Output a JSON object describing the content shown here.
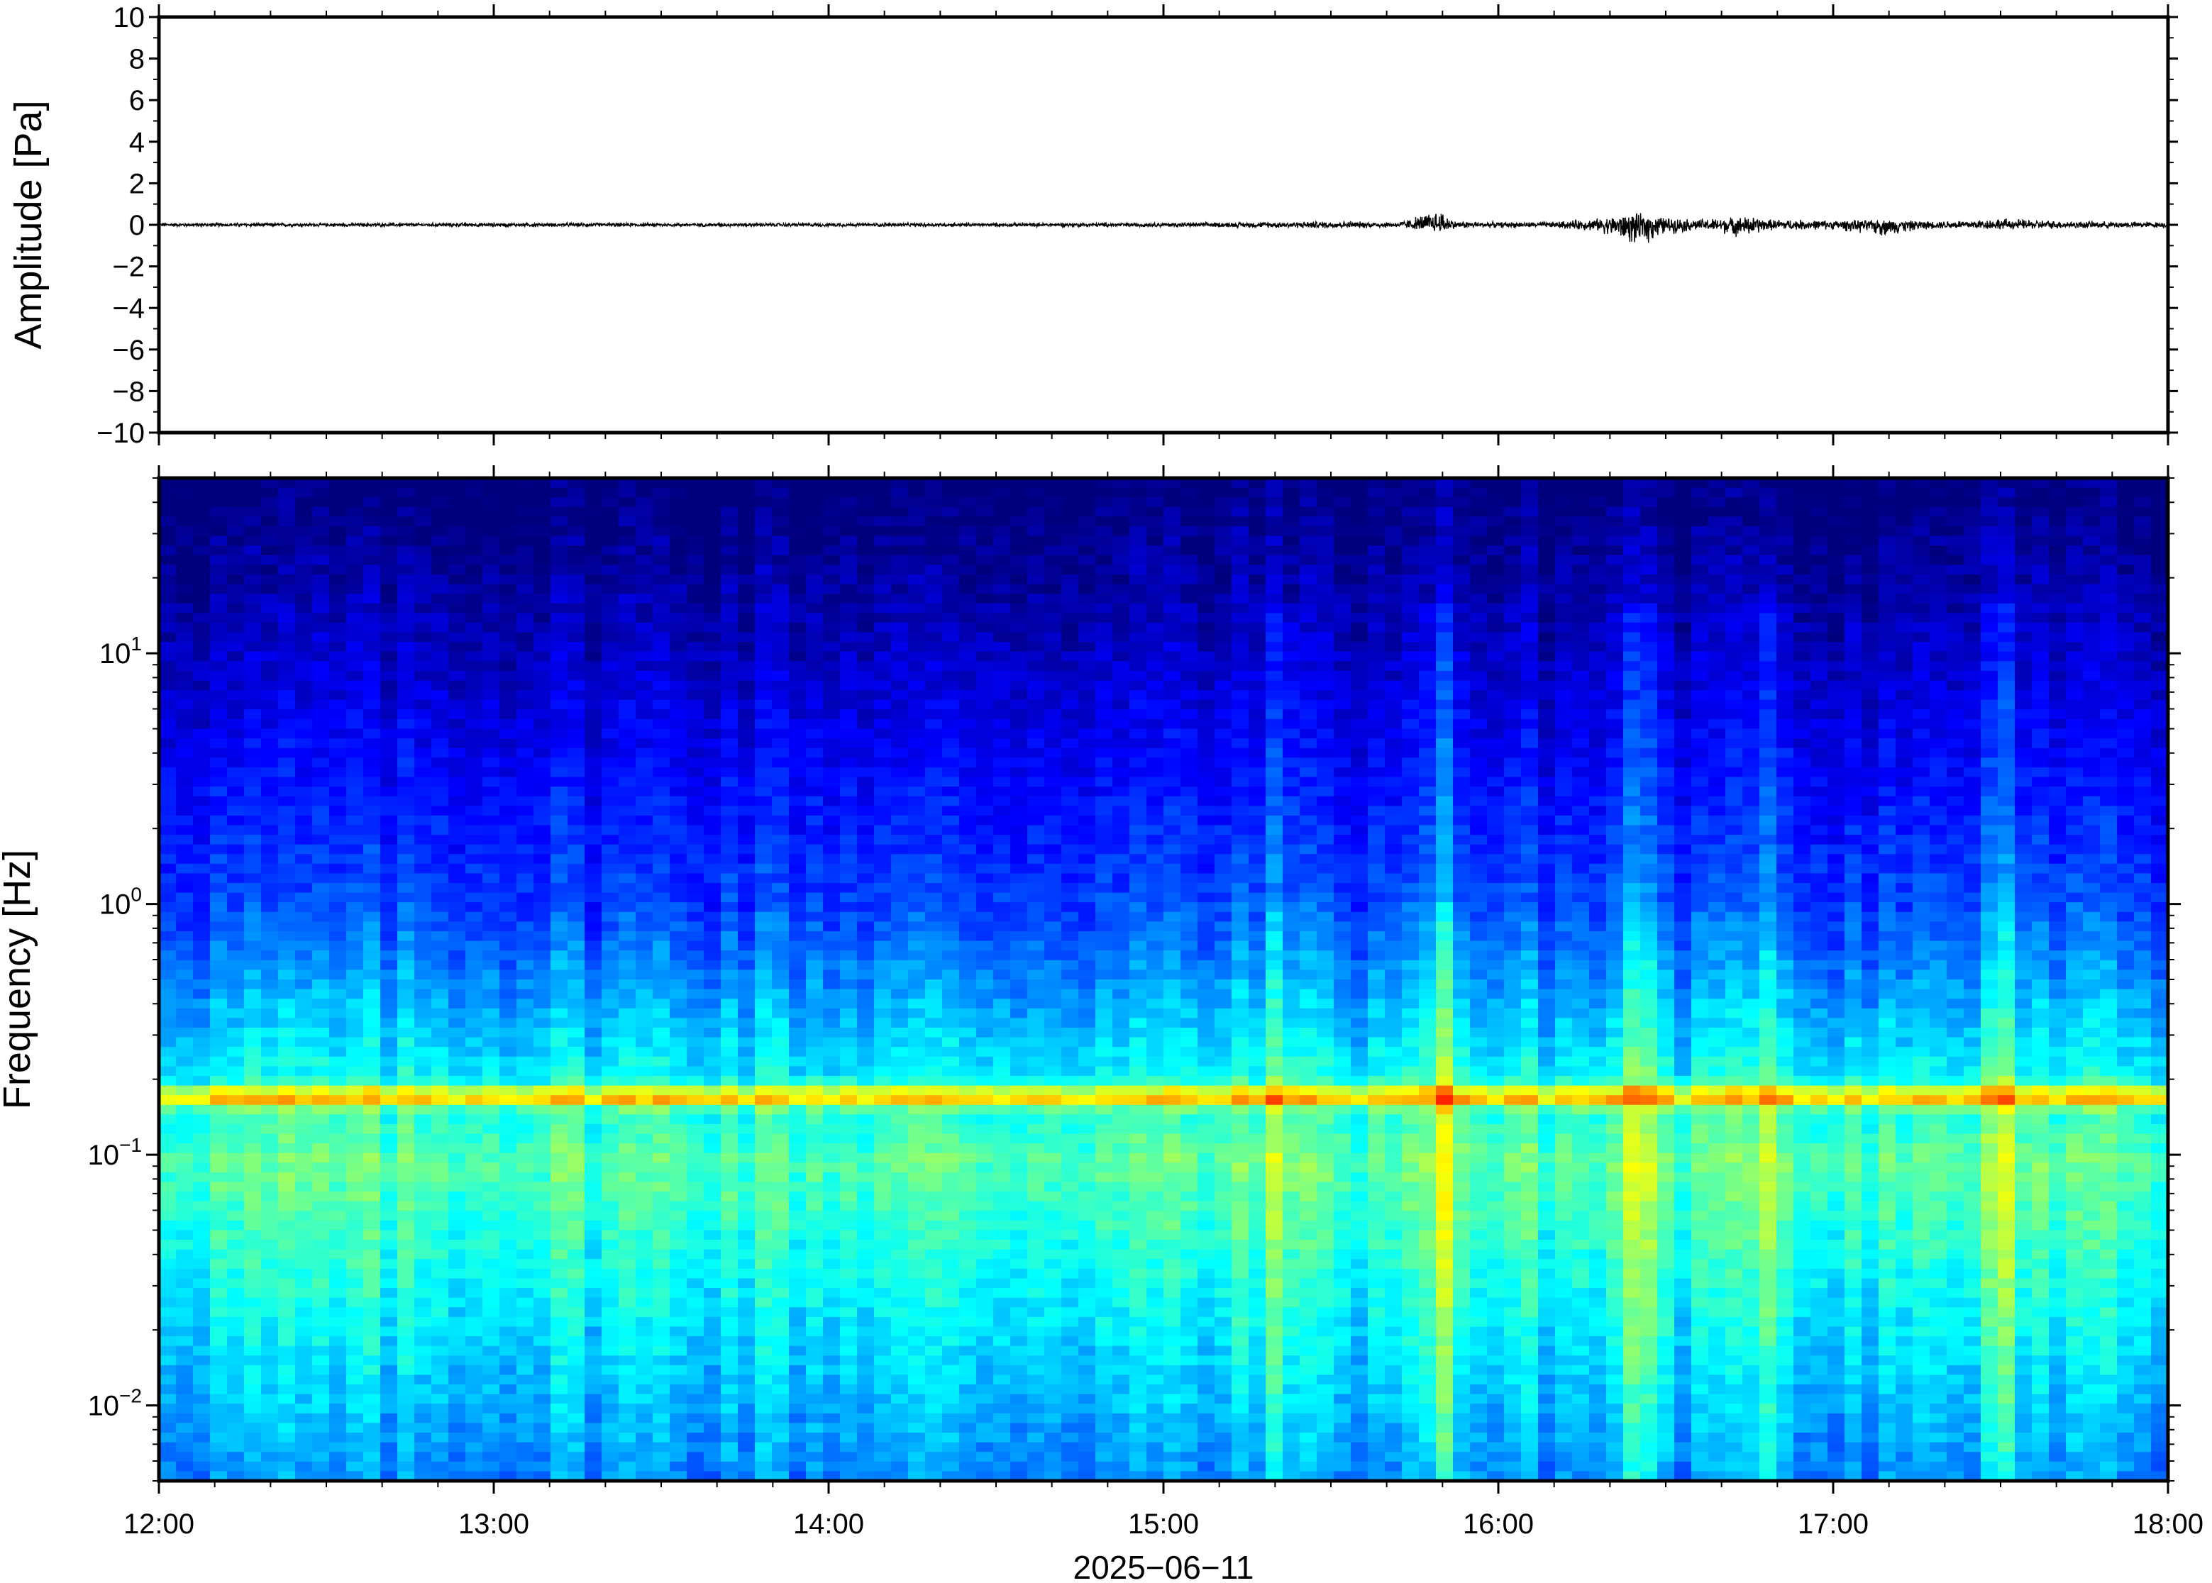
{
  "chart_data": [
    {
      "type": "line",
      "panel": "waveform",
      "ylabel": "Amplitude [Pa]",
      "ylim": [
        -10,
        10
      ],
      "yticks": [
        10,
        8,
        6,
        4,
        2,
        0,
        -2,
        -4,
        -6,
        -8,
        -10
      ],
      "ytick_labels": [
        "10",
        "8",
        "6",
        "4",
        "2",
        "0",
        "−2",
        "−4",
        "−6",
        "−8",
        "−10"
      ],
      "xlim_hours": [
        12,
        18
      ],
      "baseline": 0,
      "trace_color": "#000000",
      "envelope": {
        "hours": [
          12.0,
          12.5,
          13.0,
          13.5,
          14.0,
          14.5,
          15.0,
          15.3,
          15.5,
          15.7,
          15.83,
          15.87,
          16.0,
          16.15,
          16.3,
          16.42,
          16.5,
          16.6,
          16.75,
          16.8,
          17.0,
          17.15,
          17.3,
          17.5,
          17.7,
          18.0
        ],
        "pos_amp": [
          0.1,
          0.1,
          0.1,
          0.1,
          0.1,
          0.1,
          0.12,
          0.15,
          0.2,
          0.15,
          0.9,
          0.2,
          0.15,
          0.15,
          0.35,
          0.6,
          0.4,
          0.3,
          0.45,
          0.3,
          0.25,
          0.25,
          0.2,
          0.35,
          0.2,
          0.15
        ],
        "neg_amp": [
          0.1,
          0.1,
          0.1,
          0.1,
          0.1,
          0.1,
          0.12,
          0.15,
          0.2,
          0.15,
          0.4,
          0.2,
          0.15,
          0.15,
          0.35,
          1.2,
          0.5,
          0.3,
          0.7,
          0.3,
          0.25,
          0.6,
          0.2,
          0.25,
          0.2,
          0.15
        ]
      }
    },
    {
      "type": "heatmap",
      "panel": "spectrogram",
      "ylabel": "Frequency [Hz]",
      "yscale": "log",
      "ylim": [
        0.005,
        50
      ],
      "yticks": [
        0.01,
        0.1,
        1,
        10
      ],
      "ytick_labels": [
        {
          "base": "10",
          "exp": "−2"
        },
        {
          "base": "10",
          "exp": "−1"
        },
        {
          "base": "10",
          "exp": "0"
        },
        {
          "base": "10",
          "exp": "1"
        }
      ],
      "colormap": [
        "#00007f",
        "#0000ff",
        "#007fff",
        "#00ffff",
        "#7fff7f",
        "#ffff00",
        "#ff7f00",
        "#ff0000"
      ],
      "microbarom_band_hz": 0.17,
      "bright_columns": [
        {
          "hour": 15.35,
          "strength": 0.55
        },
        {
          "hour": 15.83,
          "strength": 0.9
        },
        {
          "hour": 16.42,
          "strength": 0.75
        },
        {
          "hour": 16.8,
          "strength": 0.6
        },
        {
          "hour": 17.5,
          "strength": 0.7
        }
      ]
    }
  ],
  "xaxis": {
    "ticks_hours": [
      12,
      13,
      14,
      15,
      16,
      17,
      18
    ],
    "tick_labels": [
      "12:00",
      "13:00",
      "14:00",
      "15:00",
      "16:00",
      "17:00",
      "18:00"
    ],
    "date_label": "2025−06−11"
  }
}
